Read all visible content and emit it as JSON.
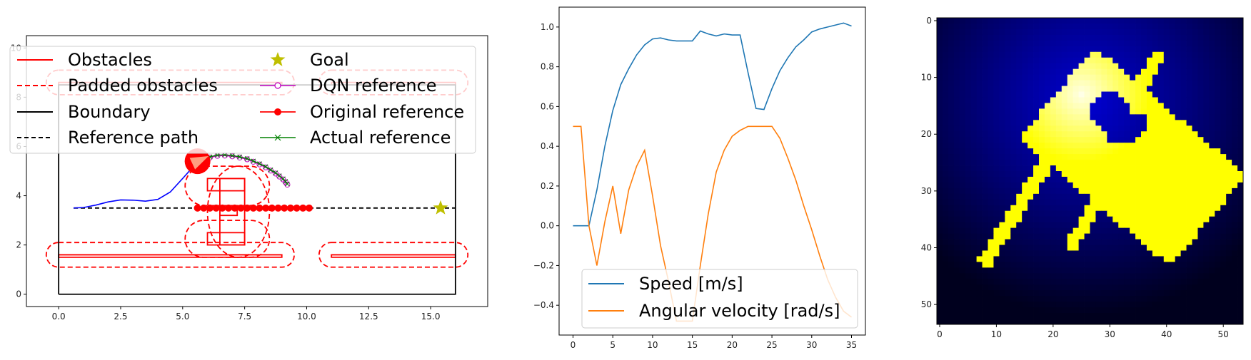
{
  "colors": {
    "obstacle": "#ff0000",
    "boundary": "#000000",
    "trajectory": "#0000ff",
    "dqn": "#bf00bf",
    "actual": "#008000",
    "goal": "#bfbf00",
    "speed": "#1f77b4",
    "angular": "#ff7f0e",
    "robot_body": "#ff0000",
    "robot_heading": "#ff9f80"
  },
  "chart_data": [
    {
      "type": "line",
      "name": "map-plot",
      "xlim": [
        -1.3,
        17.3
      ],
      "ylim": [
        -0.5,
        10.5
      ],
      "x_ticks": [
        "0.0",
        "2.5",
        "5.0",
        "7.5",
        "10.0",
        "12.5",
        "15.0"
      ],
      "y_ticks": [
        "0",
        "2",
        "4",
        "6",
        "8",
        "10"
      ],
      "legend_columns": [
        [
          "Obstacles",
          "Padded obstacles",
          "Boundary",
          "Reference path"
        ],
        [
          "Goal",
          "DQN reference",
          "Original reference",
          "Actual reference"
        ]
      ],
      "boundary": [
        [
          0,
          0
        ],
        [
          16,
          0
        ],
        [
          16,
          8.5
        ],
        [
          0,
          8.5
        ],
        [
          0,
          0
        ]
      ],
      "obstacles": [
        [
          [
            0,
            1.5
          ],
          [
            9,
            1.5
          ],
          [
            9,
            1.6
          ],
          [
            0,
            1.6
          ]
        ],
        [
          [
            11,
            1.5
          ],
          [
            16,
            1.5
          ],
          [
            16,
            1.6
          ],
          [
            11,
            1.6
          ]
        ],
        [
          [
            0,
            8.5
          ],
          [
            9,
            8.5
          ],
          [
            9,
            8.6
          ],
          [
            0,
            8.6
          ]
        ],
        [
          [
            11,
            8.5
          ],
          [
            16,
            8.5
          ],
          [
            16,
            8.6
          ],
          [
            11,
            8.6
          ]
        ],
        [
          [
            6,
            4.2
          ],
          [
            7.5,
            4.2
          ],
          [
            7.5,
            4.7
          ],
          [
            6,
            4.7
          ]
        ],
        [
          [
            6.5,
            2
          ],
          [
            7.5,
            2
          ],
          [
            7.5,
            4.7
          ],
          [
            6.5,
            4.7
          ]
        ],
        [
          [
            6,
            2
          ],
          [
            7.5,
            2
          ],
          [
            7.5,
            2.5
          ],
          [
            6,
            2.5
          ]
        ],
        [
          [
            6.5,
            3.2
          ],
          [
            7.2,
            3.2
          ],
          [
            7.2,
            3.6
          ],
          [
            6.5,
            3.6
          ]
        ]
      ],
      "padded_obstacles": [
        {
          "x0": 0,
          "x1": 9,
          "y0": 1.1,
          "y1": 2.1
        },
        {
          "x0": 11,
          "x1": 16,
          "y0": 1.1,
          "y1": 2.1
        },
        {
          "x0": 0,
          "x1": 9,
          "y0": 8.1,
          "y1": 9.1
        },
        {
          "x0": 11,
          "x1": 16,
          "y0": 8.1,
          "y1": 9.1
        },
        {
          "x0": 5.6,
          "x1": 8.0,
          "y0": 3.6,
          "y1": 5.2
        },
        {
          "x0": 5.6,
          "x1": 8.0,
          "y0": 1.5,
          "y1": 3.0
        },
        {
          "x0": 6.5,
          "x1": 8.0,
          "y0": 1.5,
          "y1": 5.2
        }
      ],
      "reference_path": {
        "x": [
          0.6,
          16.0
        ],
        "y": [
          3.5,
          3.5
        ]
      },
      "original_reference": {
        "x": [
          5.6,
          5.85,
          6.1,
          6.35,
          6.6,
          6.85,
          7.1,
          7.35,
          7.6,
          7.85,
          8.1,
          8.35,
          8.6,
          8.85,
          9.1,
          9.35,
          9.6,
          9.85,
          10.1
        ],
        "y": [
          3.5,
          3.5,
          3.5,
          3.5,
          3.5,
          3.5,
          3.5,
          3.5,
          3.5,
          3.5,
          3.5,
          3.5,
          3.5,
          3.5,
          3.5,
          3.5,
          3.5,
          3.5,
          3.5
        ]
      },
      "trajectory": {
        "x": [
          0.6,
          1.0,
          1.5,
          2.0,
          2.5,
          3.0,
          3.5,
          4.0,
          4.5,
          5.0,
          5.4,
          5.6
        ],
        "y": [
          3.5,
          3.52,
          3.62,
          3.75,
          3.83,
          3.82,
          3.78,
          3.85,
          4.15,
          4.7,
          5.15,
          5.4
        ]
      },
      "dqn_reference": {
        "x": [
          5.8,
          6.1,
          6.4,
          6.7,
          7.0,
          7.3,
          7.6,
          7.85,
          8.1,
          8.35,
          8.55,
          8.75,
          8.9,
          9.05,
          9.15,
          9.22
        ],
        "y": [
          5.45,
          5.55,
          5.62,
          5.63,
          5.6,
          5.55,
          5.48,
          5.38,
          5.27,
          5.15,
          5.02,
          4.9,
          4.78,
          4.66,
          4.55,
          4.45
        ]
      },
      "actual_reference": {
        "x": [
          5.8,
          6.1,
          6.4,
          6.7,
          7.0,
          7.3,
          7.6,
          7.85,
          8.1,
          8.35,
          8.55,
          8.75,
          8.9,
          9.05,
          9.15,
          9.22
        ],
        "y": [
          5.48,
          5.58,
          5.65,
          5.66,
          5.63,
          5.58,
          5.51,
          5.41,
          5.3,
          5.18,
          5.05,
          4.93,
          4.81,
          4.69,
          4.58,
          4.48
        ]
      },
      "goal": [
        15.4,
        3.5
      ],
      "robot": {
        "x": 5.6,
        "y": 5.4,
        "heading_deg": 25
      }
    },
    {
      "type": "line",
      "name": "velocity-plot",
      "xlim": [
        -1.75,
        36.75
      ],
      "ylim": [
        -0.55,
        1.1
      ],
      "x_ticks": [
        "0",
        "5",
        "10",
        "15",
        "20",
        "25",
        "30",
        "35"
      ],
      "y_ticks": [
        "−0.4",
        "−0.2",
        "0.0",
        "0.2",
        "0.4",
        "0.6",
        "0.8",
        "1.0"
      ],
      "legend_position": "lower-center",
      "x": [
        0,
        1,
        2,
        3,
        4,
        5,
        6,
        7,
        8,
        9,
        10,
        11,
        12,
        13,
        14,
        15,
        16,
        17,
        18,
        19,
        20,
        21,
        22,
        23,
        24,
        25,
        26,
        27,
        28,
        29,
        30,
        31,
        32,
        33,
        34,
        35
      ],
      "series": [
        {
          "name": "Speed [m/s]",
          "values": [
            0.0,
            0.0,
            0.0,
            0.18,
            0.4,
            0.58,
            0.71,
            0.79,
            0.86,
            0.91,
            0.94,
            0.945,
            0.935,
            0.93,
            0.93,
            0.93,
            0.98,
            0.965,
            0.955,
            0.965,
            0.96,
            0.96,
            0.77,
            0.59,
            0.585,
            0.69,
            0.78,
            0.845,
            0.9,
            0.935,
            0.975,
            0.99,
            1.0,
            1.01,
            1.02,
            1.005
          ]
        },
        {
          "name": "Angular velocity [rad/s]",
          "values": [
            0.5,
            0.5,
            0.0,
            -0.2,
            0.02,
            0.2,
            -0.04,
            0.18,
            0.3,
            0.38,
            0.15,
            -0.1,
            -0.28,
            -0.48,
            -0.48,
            -0.48,
            -0.2,
            0.06,
            0.27,
            0.38,
            0.45,
            0.48,
            0.5,
            0.5,
            0.5,
            0.5,
            0.44,
            0.34,
            0.23,
            0.1,
            -0.02,
            -0.15,
            -0.27,
            -0.36,
            -0.43,
            -0.46
          ]
        }
      ]
    },
    {
      "type": "heatmap",
      "name": "image-plot",
      "xlim": [
        -0.5,
        53.5
      ],
      "ylim": [
        53.5,
        -0.5
      ],
      "x_ticks": [
        "0",
        "10",
        "20",
        "30",
        "40",
        "50"
      ],
      "y_ticks": [
        "0",
        "10",
        "20",
        "30",
        "40",
        "50"
      ],
      "grid_size": 54
    }
  ]
}
